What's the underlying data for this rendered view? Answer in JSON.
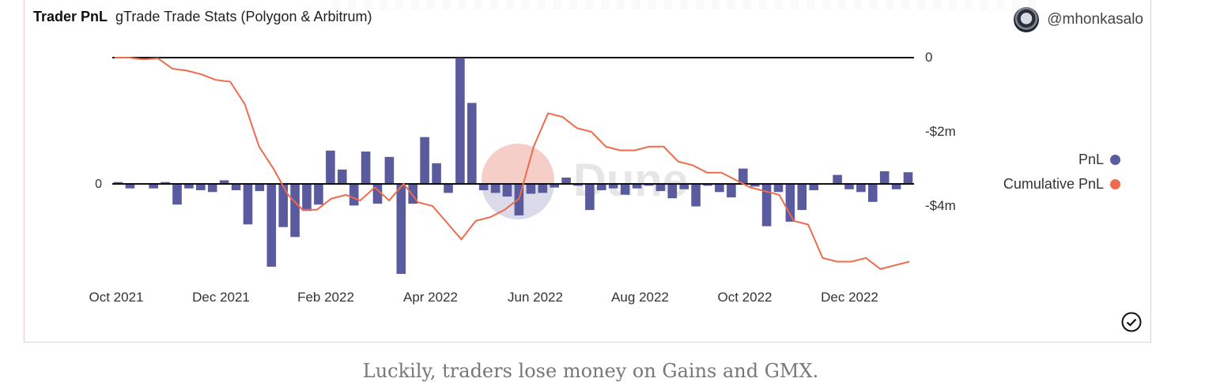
{
  "header": {
    "title": "Trader PnL",
    "subtitle": "gTrade Trade Stats (Polygon & Arbitrum)",
    "author": "@mhonkasalo",
    "avatar_icon": "user-avatar-icon"
  },
  "legend": {
    "items": [
      {
        "label": "PnL",
        "color": "#5a5a9e"
      },
      {
        "label": "Cumulative PnL",
        "color": "#ee6b4d"
      }
    ]
  },
  "watermark": "Dune",
  "caption": "Luckily, traders lose money on Gains and GMX.",
  "chart_data": {
    "type": "bar+line",
    "x_ticks": [
      "Oct 2021",
      "Dec 2021",
      "Feb 2022",
      "Apr 2022",
      "Jun 2022",
      "Aug 2022",
      "Oct 2022",
      "Dec 2022"
    ],
    "left_axis": {
      "ticks": [
        "0"
      ]
    },
    "right_axis": {
      "ticks": [
        "0",
        "-$2m",
        "-$4m"
      ],
      "values": [
        0,
        -2000000,
        -4000000
      ]
    },
    "series": [
      {
        "name": "PnL",
        "type": "bar",
        "axis": "left",
        "color": "#5a5a9e",
        "values": [
          0.02,
          -0.05,
          0,
          -0.05,
          0.02,
          -0.23,
          -0.05,
          -0.07,
          -0.09,
          0.04,
          -0.07,
          -0.45,
          -0.08,
          -0.92,
          -0.48,
          -0.59,
          -0.3,
          -0.23,
          0.37,
          0.16,
          -0.24,
          0.36,
          -0.22,
          0.3,
          -1.0,
          -0.22,
          0.52,
          0.23,
          -0.1,
          1.4,
          0.9,
          -0.07,
          -0.1,
          -0.14,
          -0.35,
          -0.11,
          -0.1,
          -0.04,
          0.07,
          -0.02,
          -0.29,
          -0.07,
          -0.05,
          -0.12,
          -0.05,
          -0.02,
          -0.08,
          -0.16,
          -0.06,
          -0.25,
          -0.02,
          -0.09,
          -0.15,
          0.17,
          -0.03,
          -0.47,
          -0.09,
          -0.42,
          -0.29,
          -0.07,
          0,
          0.1,
          -0.06,
          -0.09,
          -0.2,
          0.14,
          -0.06,
          0.13
        ]
      },
      {
        "name": "Cumulative PnL",
        "type": "line",
        "axis": "right",
        "color": "#ee6b4d",
        "values": [
          0,
          0,
          -50000,
          -20000,
          -300000,
          -350000,
          -450000,
          -600000,
          -650000,
          -1250000,
          -2400000,
          -3000000,
          -3700000,
          -4100000,
          -4100000,
          -3800000,
          -3700000,
          -3850000,
          -3500000,
          -3850000,
          -3400000,
          -3900000,
          -4000000,
          -4450000,
          -4900000,
          -4400000,
          -4300000,
          -4100000,
          -3800000,
          -2400000,
          -1500000,
          -1600000,
          -1900000,
          -2000000,
          -2400000,
          -2500000,
          -2500000,
          -2400000,
          -2400000,
          -2800000,
          -2900000,
          -3100000,
          -3100000,
          -3300000,
          -3500000,
          -3600000,
          -3700000,
          -4400000,
          -4500000,
          -5400000,
          -5500000,
          -5500000,
          -5400000,
          -5700000,
          -5600000,
          -5500000
        ]
      }
    ]
  }
}
